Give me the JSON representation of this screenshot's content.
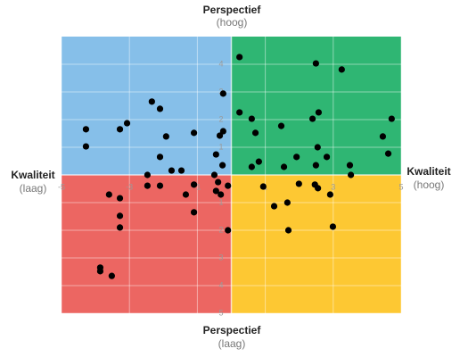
{
  "chart_data": {
    "type": "scatter",
    "top_label": "Perspectief",
    "top_sublabel": "(hoog)",
    "bottom_label": "Perspectief",
    "bottom_sublabel": "(laag)",
    "left_label": "Kwaliteit",
    "left_sublabel": "(laag)",
    "right_label": "Kwaliteit",
    "right_sublabel": "(hoog)",
    "quadrant_colors": {
      "top_left": "#86bfe9",
      "top_right": "#2fb673",
      "bottom_left": "#ec6662",
      "bottom_right": "#fdc833"
    },
    "color": "#000000",
    "xlim": [
      -5,
      5
    ],
    "ylim": [
      -5,
      5
    ],
    "xticks": [
      -5,
      -3,
      -1,
      1,
      3,
      5
    ],
    "yticks": [
      4,
      3,
      2,
      1,
      {
        "value": -1,
        "label": "1"
      },
      {
        "value": -2,
        "label": "2"
      },
      {
        "value": -3,
        "label": "3"
      },
      {
        "value": -4,
        "label": "4"
      },
      {
        "value": -5,
        "label": "5"
      }
    ],
    "grid": true,
    "x": [
      -4.28,
      -4.28,
      -3.28,
      -3.07,
      -2.34,
      -2.1,
      -1.92,
      -2.1,
      -1.1,
      -1.76,
      -1.47,
      -2.47,
      -0.45,
      -0.34,
      -0.24,
      -0.24,
      -0.26,
      -0.5,
      0.24,
      2.49,
      3.25,
      0.24,
      0.6,
      0.71,
      1.47,
      2.39,
      2.57,
      4.72,
      4.46,
      4.62,
      2.54,
      2.81,
      2.49,
      1.92,
      1.55,
      0.81,
      0.6,
      3.49,
      3.52,
      -2.47,
      -2.1,
      -1.1,
      -0.39,
      -0.1,
      -0.45,
      -0.31,
      -1.34,
      -1.1,
      -3.6,
      -3.28,
      -3.28,
      -3.28,
      -0.1,
      -3.86,
      -3.86,
      -3.52,
      0.94,
      1.99,
      2.46,
      2.55,
      2.91,
      1.26,
      1.65,
      1.68,
      2.99
    ],
    "values": [
      1.65,
      1.03,
      1.65,
      1.87,
      2.65,
      2.39,
      1.39,
      0.65,
      1.52,
      0.16,
      0.16,
      0.0,
      0.74,
      1.42,
      1.58,
      2.94,
      0.35,
      0.0,
      4.26,
      4.03,
      3.81,
      2.26,
      2.03,
      1.52,
      1.77,
      2.03,
      2.26,
      2.03,
      1.39,
      0.77,
      1.0,
      0.65,
      0.35,
      0.65,
      0.29,
      0.48,
      0.29,
      0.35,
      0.0,
      -0.39,
      -0.39,
      -0.35,
      -0.26,
      -0.39,
      -0.58,
      -0.71,
      -0.71,
      -1.35,
      -0.71,
      -0.84,
      -1.48,
      -1.9,
      -2.0,
      -3.35,
      -3.48,
      -3.65,
      -0.42,
      -0.32,
      -0.35,
      -0.48,
      -0.71,
      -1.13,
      -1.0,
      -2.0,
      -1.87
    ]
  }
}
